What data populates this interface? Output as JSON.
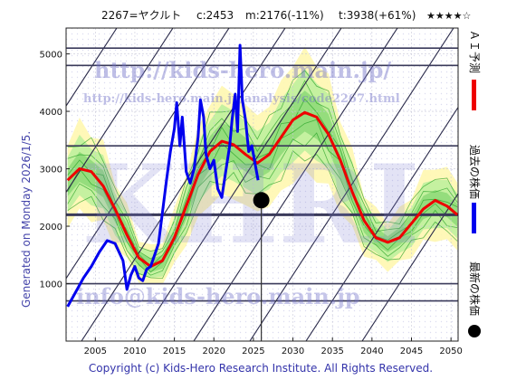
{
  "header": {
    "code": "2267=ヤクルト",
    "current": "c:2453",
    "median": "m:2176(-11%)",
    "target": "t:3938(+61%)",
    "rating": "★★★★☆"
  },
  "side_text": {
    "generated": "Generated on Monday 2026/1/5.",
    "legend_ai": "ＡＩ予測",
    "legend_past": "過去の株価",
    "legend_latest": "最新の株価"
  },
  "watermarks": {
    "url_main": "http://kids-hero.main.jp/",
    "url_analysis": "http://kids-hero.main.jp/analysis/code2267.html",
    "email": "info@kids-hero.main.jp",
    "logo": "KHRI"
  },
  "footer": {
    "copyright": "Copyright (c) Kids-Hero Research Institute. All Rights Reserved."
  },
  "colors": {
    "ai_line": "#ee0000",
    "past_line": "#0000ee",
    "latest_dot": "#000000",
    "band_light": "#fff7b0",
    "band_green": "#b7ef9a",
    "band_dark": "#3cb83c",
    "channel": "#2a2a4a"
  },
  "chart_data": {
    "type": "line",
    "x_ticks": [
      2005,
      2010,
      2015,
      2020,
      2025,
      2030,
      2035,
      2040,
      2045,
      2050
    ],
    "y_ticks": [
      1000,
      2000,
      3000,
      4000,
      5000
    ],
    "xlim": [
      2001.3,
      2050.9
    ],
    "ylim": [
      0,
      5450
    ],
    "grid": true,
    "horizontal_levels": [
      700,
      1000,
      2200,
      3400,
      4800,
      5100
    ],
    "latest_point": {
      "x": 2026.0,
      "y": 2453
    },
    "series": [
      {
        "name": "ＡＩ予測",
        "x": [
          2001.5,
          2003,
          2004.5,
          2006,
          2007.5,
          2009,
          2010.5,
          2012,
          2013.5,
          2015,
          2016.5,
          2018,
          2019.5,
          2021,
          2022.5,
          2024,
          2025.5,
          2027,
          2028.5,
          2030,
          2031.5,
          2033,
          2034.5,
          2036,
          2037.5,
          2039,
          2040.5,
          2042,
          2043.5,
          2045,
          2046.5,
          2048,
          2049.5,
          2050.8
        ],
        "y": [
          2800,
          3000,
          2950,
          2700,
          2300,
          1850,
          1450,
          1300,
          1400,
          1800,
          2350,
          2900,
          3300,
          3480,
          3420,
          3250,
          3100,
          3250,
          3550,
          3850,
          3980,
          3900,
          3600,
          3150,
          2600,
          2100,
          1800,
          1720,
          1800,
          2050,
          2300,
          2450,
          2350,
          2200
        ]
      },
      {
        "name": "過去の株価",
        "x": [
          2001.5,
          2002.5,
          2003.5,
          2004.5,
          2005.5,
          2006.5,
          2007.5,
          2008.5,
          2009,
          2009.5,
          2010,
          2010.5,
          2011,
          2011.5,
          2012,
          2012.5,
          2013,
          2013.5,
          2014,
          2014.5,
          2015,
          2015.3,
          2015.7,
          2016,
          2016.5,
          2017,
          2017.5,
          2018,
          2018.3,
          2018.7,
          2019,
          2019.5,
          2020,
          2020.5,
          2021,
          2021.5,
          2022,
          2022.3,
          2022.7,
          2023,
          2023.3,
          2023.6,
          2024,
          2024.4,
          2024.8,
          2025.2,
          2025.6
        ],
        "y": [
          600,
          850,
          1100,
          1300,
          1550,
          1750,
          1700,
          1400,
          900,
          1150,
          1300,
          1100,
          1050,
          1250,
          1300,
          1500,
          1700,
          2250,
          2800,
          3300,
          3700,
          4150,
          3400,
          3900,
          2950,
          2750,
          3000,
          3550,
          4200,
          3900,
          3250,
          3000,
          3150,
          2650,
          2500,
          2950,
          3400,
          3850,
          4300,
          3650,
          5150,
          4200,
          3850,
          3300,
          3400,
          3100,
          2800
        ]
      }
    ]
  }
}
